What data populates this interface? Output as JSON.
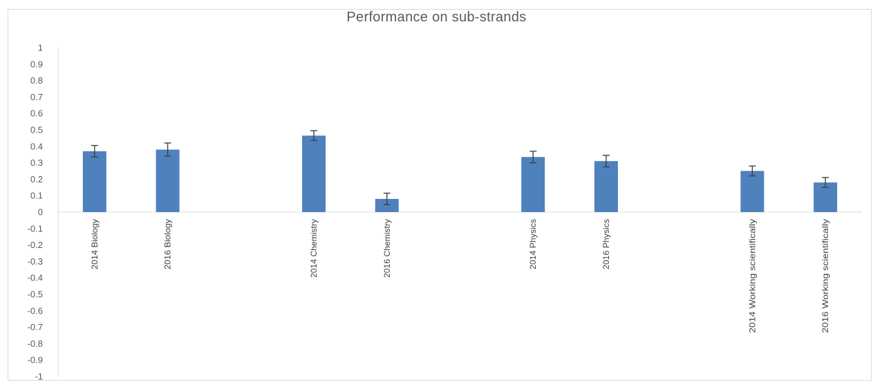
{
  "chart_data": {
    "type": "bar",
    "title": "Performance on sub-strands",
    "xlabel": "",
    "ylabel": "",
    "ylim": [
      -1,
      1
    ],
    "ytick_step": 0.1,
    "y_ticks": [
      "1",
      "0.9",
      "0.8",
      "0.7",
      "0.6",
      "0.5",
      "0.4",
      "0.3",
      "0.2",
      "0.1",
      "0",
      "-0.1",
      "-0.2",
      "-0.3",
      "-0.4",
      "-0.5",
      "-0.6",
      "-0.7",
      "-0.8",
      "-0.9",
      "-1"
    ],
    "categories": [
      "2014 Biology",
      "2016 Biology",
      "",
      "2014 Chemistry",
      "2016 Chemistry",
      "",
      "2014 Physics",
      "2016 Physics",
      "",
      "2014 Working scientifically",
      "2016 Working scientifically"
    ],
    "values": [
      0.37,
      0.38,
      null,
      0.465,
      0.08,
      null,
      0.335,
      0.31,
      null,
      0.25,
      0.18
    ],
    "error": [
      0.035,
      0.04,
      null,
      0.03,
      0.035,
      null,
      0.035,
      0.035,
      null,
      0.03,
      0.03
    ],
    "grid": false,
    "legend": "none",
    "colors": {
      "bar": "#4f81bd",
      "error_bar": "#404040",
      "axis": "#d9d9d9",
      "text": "#595959"
    }
  }
}
